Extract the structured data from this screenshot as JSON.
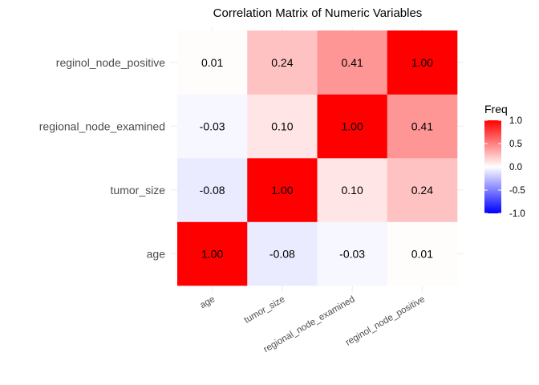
{
  "chart_data": {
    "type": "heatmap",
    "title": "Correlation Matrix of Numeric Variables",
    "xlabel": "",
    "ylabel": "",
    "x_categories": [
      "age",
      "tumor_size",
      "regional_node_examined",
      "reginol_node_positive"
    ],
    "y_categories": [
      "age",
      "tumor_size",
      "regional_node_examined",
      "reginol_node_positive"
    ],
    "values": [
      [
        1.0,
        -0.08,
        -0.03,
        0.01
      ],
      [
        -0.08,
        1.0,
        0.1,
        0.24
      ],
      [
        -0.03,
        0.1,
        1.0,
        0.41
      ],
      [
        0.01,
        0.24,
        0.41,
        1.0
      ]
    ],
    "labels": [
      [
        "1.00",
        "-0.08",
        "-0.03",
        "0.01"
      ],
      [
        "-0.08",
        "1.00",
        "0.10",
        "0.24"
      ],
      [
        "-0.03",
        "0.10",
        "1.00",
        "0.41"
      ],
      [
        "0.01",
        "0.24",
        "0.41",
        "1.00"
      ]
    ],
    "legend": {
      "title": "Freq",
      "ticks": [
        1.0,
        0.5,
        0.0,
        -0.5,
        -1.0
      ],
      "tick_labels": [
        "1.0",
        "0.5",
        "0.0",
        "-0.5",
        "-1.0"
      ],
      "range": [
        -1,
        1
      ],
      "placement": "right"
    },
    "colors": {
      "low": "#0000ff",
      "mid": "#ffffff",
      "high": "#ff0000"
    },
    "grid": true
  }
}
